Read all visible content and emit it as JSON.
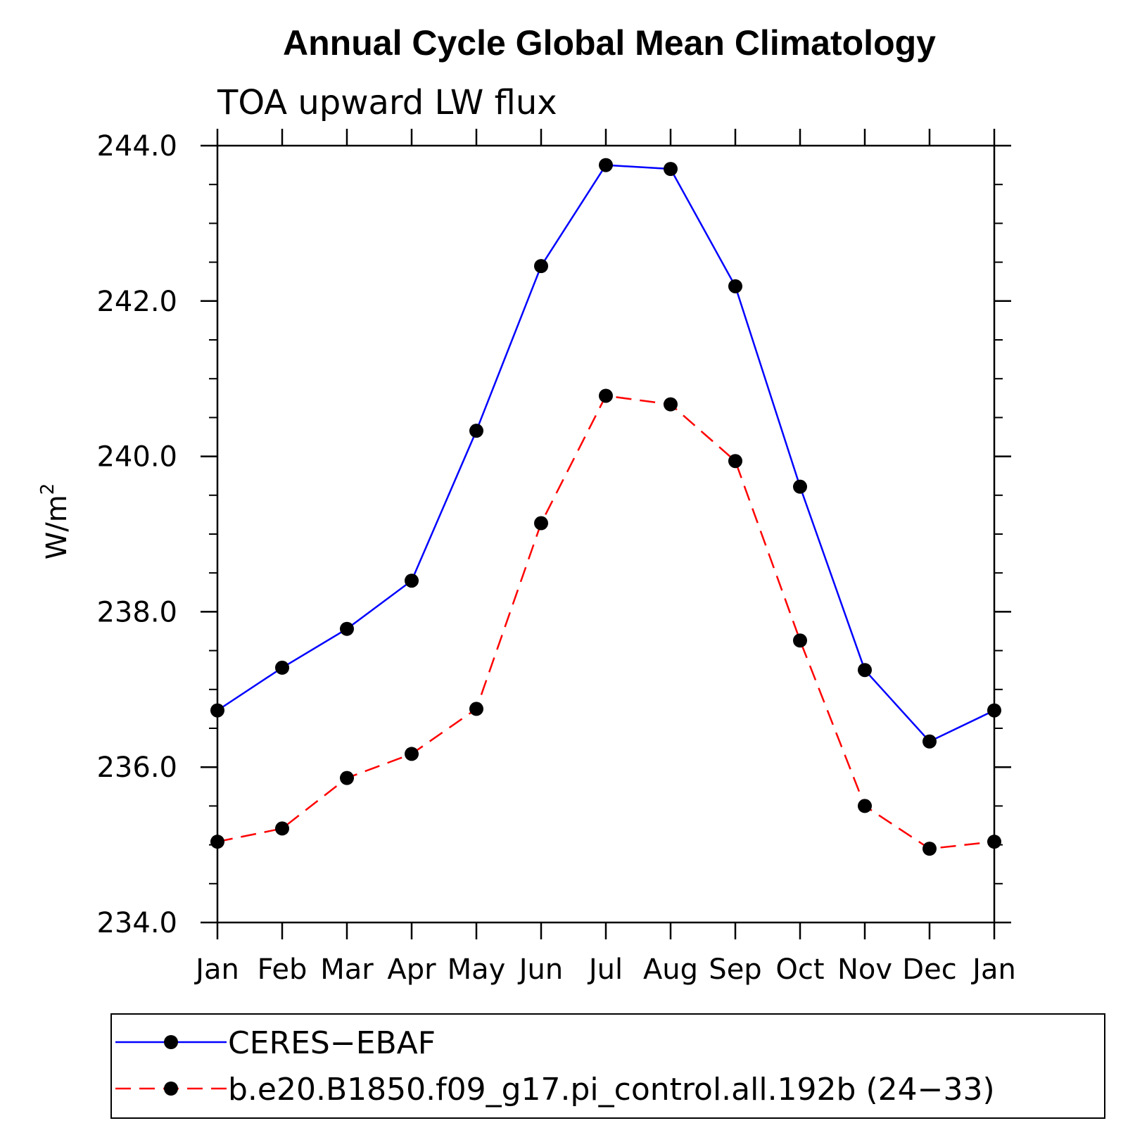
{
  "chart_data": {
    "type": "line",
    "title": "Annual Cycle Global Mean Climatology",
    "subtitle": "TOA upward LW flux",
    "ylabel": "W/m",
    "ylabel_sup": "2",
    "xlabel": "",
    "categories": [
      "Jan",
      "Feb",
      "Mar",
      "Apr",
      "May",
      "Jun",
      "Jul",
      "Aug",
      "Sep",
      "Oct",
      "Nov",
      "Dec",
      "Jan"
    ],
    "ylim": [
      234.0,
      244.0
    ],
    "yticks": [
      "244.0",
      "242.0",
      "240.0",
      "238.0",
      "236.0",
      "234.0"
    ],
    "yticks_values": [
      244.0,
      242.0,
      240.0,
      238.0,
      236.0,
      234.0
    ],
    "grid": false,
    "legend_position": "bottom",
    "series": [
      {
        "name": "CERES−EBAF",
        "color": "#0000ff",
        "dash": "solid",
        "marker": "filled-circle",
        "values": [
          236.73,
          237.28,
          237.78,
          238.4,
          240.33,
          242.45,
          243.75,
          243.7,
          242.19,
          239.61,
          237.25,
          236.33,
          236.73
        ]
      },
      {
        "name": "b.e20.B1850.f09_g17.pi_control.all.192b (24−33)",
        "color": "#ff0000",
        "dash": "dashed",
        "marker": "filled-circle",
        "values": [
          235.04,
          235.21,
          235.86,
          236.17,
          236.75,
          239.14,
          240.78,
          240.67,
          239.94,
          237.63,
          235.5,
          234.95,
          235.04
        ]
      }
    ]
  }
}
